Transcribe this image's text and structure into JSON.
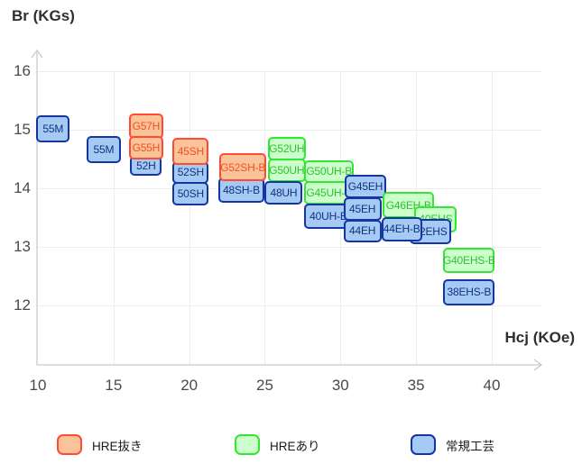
{
  "chart_data": {
    "type": "scatter",
    "note": "Magnet grade map: labeled range boxes of Br vs Hcj",
    "x_axis": {
      "label": "Hcj (KOe)",
      "min": 10,
      "max": 40,
      "ticks": [
        10,
        15,
        20,
        25,
        30,
        35,
        40
      ]
    },
    "y_axis": {
      "label": "Br (KGs)",
      "min": 12,
      "max": 16,
      "ticks": [
        12,
        13,
        14,
        15,
        16
      ]
    },
    "grid": true,
    "legend_position": "bottom",
    "series_styles": {
      "hre_free": {
        "label": "HRE抜き",
        "fill": "#FAC39A",
        "border": "#FF4B33",
        "text": "#F4511E"
      },
      "hre_added": {
        "label": "HREあり",
        "fill": "#CCFFCC",
        "border": "#33E633",
        "text": "#2FBF2F"
      },
      "conventional": {
        "label": "常規工芸",
        "fill": "#A5CBF5",
        "border": "#1535A3",
        "text": "#143081"
      }
    },
    "boxes": [
      {
        "label": "55M",
        "series": "conventional",
        "hcj": [
          9.9,
          12.1
        ],
        "br": [
          14.78,
          15.25
        ]
      },
      {
        "label": "55M",
        "series": "conventional",
        "hcj": [
          13.2,
          15.5
        ],
        "br": [
          14.43,
          14.89
        ]
      },
      {
        "label": "52H",
        "series": "conventional",
        "hcj": [
          16.1,
          18.2
        ],
        "br": [
          14.22,
          14.55
        ]
      },
      {
        "label": "G57H",
        "series": "hre_free",
        "hcj": [
          16.0,
          18.3
        ],
        "br": [
          14.85,
          15.28
        ]
      },
      {
        "label": "G55H",
        "series": "hre_free",
        "hcj": [
          16.0,
          18.3
        ],
        "br": [
          14.49,
          14.89
        ]
      },
      {
        "label": "52SH",
        "series": "conventional",
        "hcj": [
          18.9,
          21.3
        ],
        "br": [
          14.08,
          14.46
        ]
      },
      {
        "label": "50SH",
        "series": "conventional",
        "hcj": [
          18.9,
          21.3
        ],
        "br": [
          13.71,
          14.11
        ]
      },
      {
        "label": "45SH",
        "series": "hre_free",
        "hcj": [
          18.9,
          21.3
        ],
        "br": [
          14.4,
          14.86
        ]
      },
      {
        "label": "48SH-B",
        "series": "conventional",
        "hcj": [
          21.9,
          25.0
        ],
        "br": [
          13.75,
          14.18
        ]
      },
      {
        "label": "G52SH-B",
        "series": "hre_free",
        "hcj": [
          22.0,
          25.1
        ],
        "br": [
          14.12,
          14.6
        ]
      },
      {
        "label": "G52UH",
        "series": "hre_added",
        "hcj": [
          25.2,
          27.7
        ],
        "br": [
          14.48,
          14.88
        ]
      },
      {
        "label": "G50UH",
        "series": "hre_added",
        "hcj": [
          25.2,
          27.7
        ],
        "br": [
          14.11,
          14.51
        ]
      },
      {
        "label": "48UH",
        "series": "conventional",
        "hcj": [
          25.0,
          27.5
        ],
        "br": [
          13.72,
          14.12
        ]
      },
      {
        "label": "G50UH-B",
        "series": "hre_added",
        "hcj": [
          27.6,
          30.9
        ],
        "br": [
          14.09,
          14.48
        ]
      },
      {
        "label": "G45UH-B",
        "series": "hre_added",
        "hcj": [
          27.6,
          30.9
        ],
        "br": [
          13.72,
          14.12
        ]
      },
      {
        "label": "40UH-B",
        "series": "conventional",
        "hcj": [
          27.6,
          30.8
        ],
        "br": [
          13.31,
          13.74
        ]
      },
      {
        "label": "G45EH",
        "series": "conventional",
        "hcj": [
          30.3,
          33.0
        ],
        "br": [
          13.83,
          14.23
        ]
      },
      {
        "label": "45EH",
        "series": "conventional",
        "hcj": [
          30.2,
          32.7
        ],
        "br": [
          13.45,
          13.85
        ]
      },
      {
        "label": "44EH",
        "series": "conventional",
        "hcj": [
          30.2,
          32.7
        ],
        "br": [
          13.08,
          13.46
        ]
      },
      {
        "label": "G46EH-B",
        "series": "hre_added",
        "hcj": [
          32.8,
          36.2
        ],
        "br": [
          13.49,
          13.94
        ]
      },
      {
        "label": "40EHS",
        "series": "hre_added",
        "hcj": [
          34.9,
          37.7
        ],
        "br": [
          13.25,
          13.7
        ]
      },
      {
        "label": "42EHS",
        "series": "conventional",
        "hcj": [
          34.6,
          37.3
        ],
        "br": [
          13.05,
          13.48
        ]
      },
      {
        "label": "44EH-B",
        "series": "conventional",
        "hcj": [
          32.7,
          35.4
        ],
        "br": [
          13.09,
          13.51
        ]
      },
      {
        "label": "G40EHS-B",
        "series": "hre_added",
        "hcj": [
          36.8,
          40.2
        ],
        "br": [
          12.55,
          12.98
        ]
      },
      {
        "label": "38EHS-B",
        "series": "conventional",
        "hcj": [
          36.8,
          40.2
        ],
        "br": [
          12.0,
          12.45
        ]
      }
    ]
  }
}
